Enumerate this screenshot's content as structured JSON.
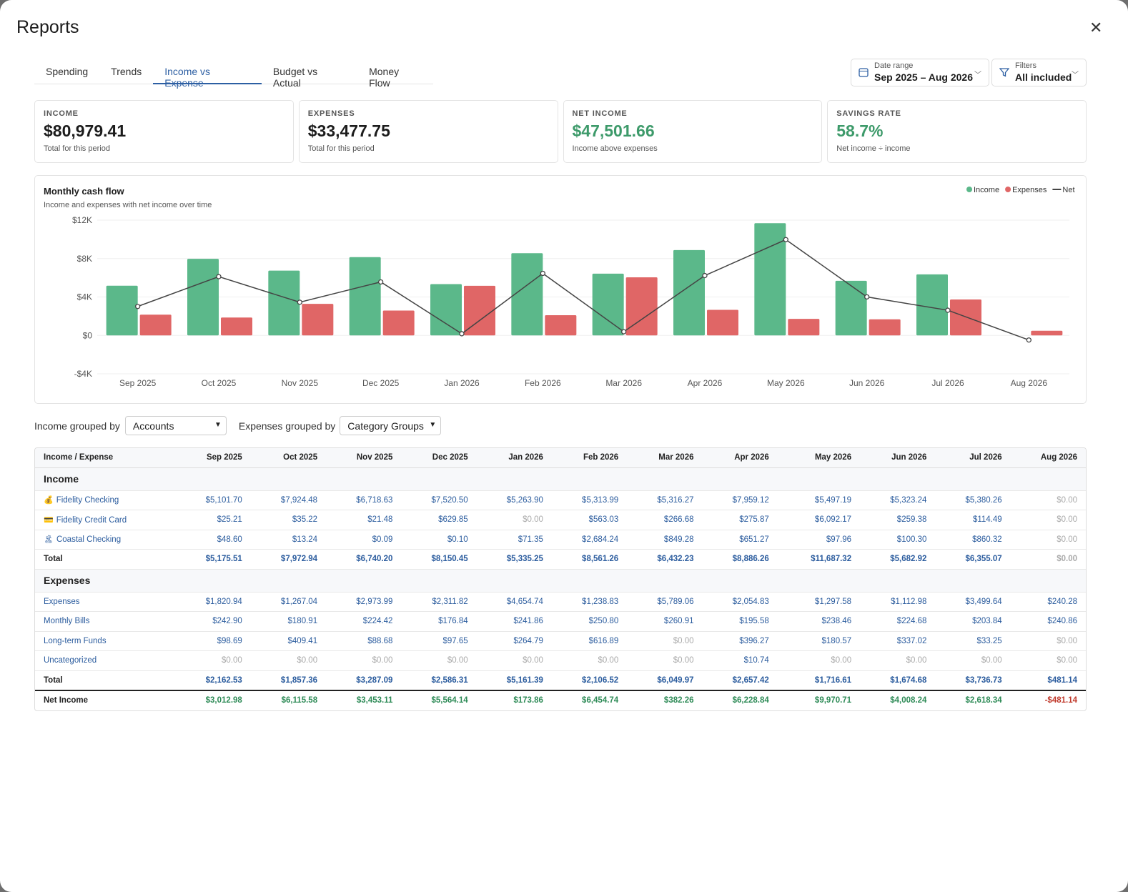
{
  "header": {
    "title": "Reports",
    "close": "✕"
  },
  "tabs": [
    "Spending",
    "Trends",
    "Income vs Expense",
    "Budget vs Actual",
    "Money Flow"
  ],
  "active_tab": 2,
  "date_range": {
    "label": "Date range",
    "value": "Sep 2025 – Aug 2026"
  },
  "filters": {
    "label": "Filters",
    "value": "All included"
  },
  "cards": [
    {
      "label": "INCOME",
      "value": "$80,979.41",
      "note": "Total for this period",
      "color": "#1c1c1c"
    },
    {
      "label": "EXPENSES",
      "value": "$33,477.75",
      "note": "Total for this period",
      "color": "#1c1c1c"
    },
    {
      "label": "NET INCOME",
      "value": "$47,501.66",
      "note": "Income above expenses",
      "color": "#3d9a6a"
    },
    {
      "label": "SAVINGS RATE",
      "value": "58.7%",
      "note": "Net income ÷ income",
      "color": "#3d9a6a"
    }
  ],
  "chart_data": {
    "type": "bar",
    "title": "Monthly cash flow",
    "subtitle": "Income and expenses with net income over time",
    "categories": [
      "Sep 2025",
      "Oct 2025",
      "Nov 2025",
      "Dec 2025",
      "Jan 2026",
      "Feb 2026",
      "Mar 2026",
      "Apr 2026",
      "May 2026",
      "Jun 2026",
      "Jul 2026",
      "Aug 2026"
    ],
    "series": [
      {
        "name": "Income",
        "type": "bar",
        "color": "#5bb88a",
        "values": [
          5175.51,
          7972.94,
          6740.2,
          8150.45,
          5335.25,
          8561.26,
          6432.23,
          8886.26,
          11687.32,
          5682.92,
          6355.07,
          0
        ]
      },
      {
        "name": "Expenses",
        "type": "bar",
        "color": "#e06666",
        "values": [
          2162.53,
          1857.36,
          3287.09,
          2586.31,
          5161.39,
          2106.52,
          6049.97,
          2657.42,
          1716.61,
          1674.68,
          3736.73,
          481.14
        ]
      },
      {
        "name": "Net",
        "type": "line",
        "color": "#444444",
        "values": [
          3012.98,
          6115.58,
          3453.11,
          5564.14,
          173.86,
          6454.74,
          382.26,
          6228.84,
          9970.71,
          4008.24,
          2618.34,
          -481.14
        ]
      }
    ],
    "ylim": [
      -4000,
      12000
    ],
    "yticks": [
      {
        "value": -4000,
        "label": "-$4K"
      },
      {
        "value": 0,
        "label": "$0"
      },
      {
        "value": 4000,
        "label": "$4K"
      },
      {
        "value": 8000,
        "label": "$8K"
      },
      {
        "value": 12000,
        "label": "$12K"
      }
    ],
    "grid": true,
    "legend": "top-right"
  },
  "grouping": {
    "income_label": "Income grouped by",
    "income_value": "Accounts",
    "expense_label": "Expenses grouped by",
    "expense_value": "Category Groups"
  },
  "table": {
    "columns": [
      "Income / Expense",
      "Sep 2025",
      "Oct 2025",
      "Nov 2025",
      "Dec 2025",
      "Jan 2026",
      "Feb 2026",
      "Mar 2026",
      "Apr 2026",
      "May 2026",
      "Jun 2026",
      "Jul 2026",
      "Aug 2026"
    ],
    "sections": [
      {
        "title": "Income",
        "rows": [
          {
            "icon": "💰",
            "name": "Fidelity Checking",
            "values": [
              "$5,101.70",
              "$7,924.48",
              "$6,718.63",
              "$7,520.50",
              "$5,263.90",
              "$5,313.99",
              "$5,316.27",
              "$7,959.12",
              "$5,497.19",
              "$5,323.24",
              "$5,380.26",
              "$0.00"
            ]
          },
          {
            "icon": "💳",
            "name": "Fidelity Credit Card",
            "values": [
              "$25.21",
              "$35.22",
              "$21.48",
              "$629.85",
              "$0.00",
              "$563.03",
              "$266.68",
              "$275.87",
              "$6,092.17",
              "$259.38",
              "$114.49",
              "$0.00"
            ]
          },
          {
            "icon": "🏝",
            "name": "Coastal Checking",
            "values": [
              "$48.60",
              "$13.24",
              "$0.09",
              "$0.10",
              "$71.35",
              "$2,684.24",
              "$849.28",
              "$651.27",
              "$97.96",
              "$100.30",
              "$860.32",
              "$0.00"
            ]
          }
        ],
        "total": {
          "label": "Total",
          "values": [
            "$5,175.51",
            "$7,972.94",
            "$6,740.20",
            "$8,150.45",
            "$5,335.25",
            "$8,561.26",
            "$6,432.23",
            "$8,886.26",
            "$11,687.32",
            "$5,682.92",
            "$6,355.07",
            "$0.00"
          ]
        }
      },
      {
        "title": "Expenses",
        "rows": [
          {
            "name": "Expenses",
            "values": [
              "$1,820.94",
              "$1,267.04",
              "$2,973.99",
              "$2,311.82",
              "$4,654.74",
              "$1,238.83",
              "$5,789.06",
              "$2,054.83",
              "$1,297.58",
              "$1,112.98",
              "$3,499.64",
              "$240.28"
            ]
          },
          {
            "name": "Monthly Bills",
            "values": [
              "$242.90",
              "$180.91",
              "$224.42",
              "$176.84",
              "$241.86",
              "$250.80",
              "$260.91",
              "$195.58",
              "$238.46",
              "$224.68",
              "$203.84",
              "$240.86"
            ]
          },
          {
            "name": "Long-term Funds",
            "values": [
              "$98.69",
              "$409.41",
              "$88.68",
              "$97.65",
              "$264.79",
              "$616.89",
              "$0.00",
              "$396.27",
              "$180.57",
              "$337.02",
              "$33.25",
              "$0.00"
            ]
          },
          {
            "name": "Uncategorized",
            "values": [
              "$0.00",
              "$0.00",
              "$0.00",
              "$0.00",
              "$0.00",
              "$0.00",
              "$0.00",
              "$10.74",
              "$0.00",
              "$0.00",
              "$0.00",
              "$0.00"
            ]
          }
        ],
        "total": {
          "label": "Total",
          "values": [
            "$2,162.53",
            "$1,857.36",
            "$3,287.09",
            "$2,586.31",
            "$5,161.39",
            "$2,106.52",
            "$6,049.97",
            "$2,657.42",
            "$1,716.61",
            "$1,674.68",
            "$3,736.73",
            "$481.14"
          ]
        }
      }
    ],
    "net": {
      "label": "Net Income",
      "values": [
        "$3,012.98",
        "$6,115.58",
        "$3,453.11",
        "$5,564.14",
        "$173.86",
        "$6,454.74",
        "$382.26",
        "$6,228.84",
        "$9,970.71",
        "$4,008.24",
        "$2,618.34",
        "-$481.14"
      ]
    }
  }
}
